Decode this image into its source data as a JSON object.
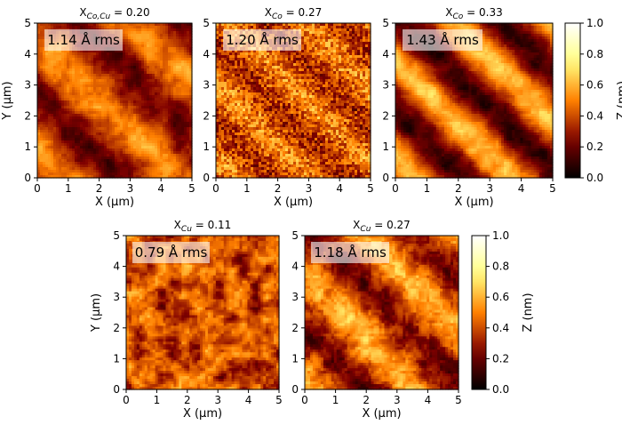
{
  "chart_data": [
    {
      "type": "heatmap",
      "title": {
        "main": "X",
        "sub": "Co,Cu",
        "val": " = 0.20"
      },
      "annotation": "1.14 Å rms",
      "rms_angstrom": 1.14,
      "xlabel": "X (μm)",
      "ylabel": "Y (μm)",
      "xlim": [
        0,
        5
      ],
      "ylim": [
        0,
        5
      ],
      "xticks": [
        "0",
        "1",
        "2",
        "3",
        "4",
        "5"
      ],
      "yticks": [
        "0",
        "1",
        "2",
        "3",
        "4",
        "5"
      ],
      "pattern": "diagonal stripes"
    },
    {
      "type": "heatmap",
      "title": {
        "main": "X",
        "sub": "Co",
        "val": " = 0.27"
      },
      "annotation": "1.20 Å rms",
      "rms_angstrom": 1.2,
      "xlabel": "X (μm)",
      "ylabel": "",
      "xlim": [
        0,
        5
      ],
      "ylim": [
        0,
        5
      ],
      "xticks": [
        "0",
        "1",
        "2",
        "3",
        "4",
        "5"
      ],
      "yticks": [
        "0",
        "1",
        "2",
        "3",
        "4",
        "5"
      ],
      "pattern": "fine grain, horizontal streaks"
    },
    {
      "type": "heatmap",
      "title": {
        "main": "X",
        "sub": "Co",
        "val": " = 0.33"
      },
      "annotation": "1.43 Å rms",
      "rms_angstrom": 1.43,
      "xlabel": "X (μm)",
      "ylabel": "",
      "xlim": [
        0,
        5
      ],
      "ylim": [
        0,
        5
      ],
      "xticks": [
        "0",
        "1",
        "2",
        "3",
        "4",
        "5"
      ],
      "yticks": [
        "0",
        "1",
        "2",
        "3",
        "4",
        "5"
      ],
      "pattern": "strong diagonal stripes"
    },
    {
      "type": "heatmap",
      "title": {
        "main": "X",
        "sub": "Cu",
        "val": " = 0.11"
      },
      "annotation": "0.79 Å rms",
      "rms_angstrom": 0.79,
      "xlabel": "X (μm)",
      "ylabel": "Y (μm)",
      "xlim": [
        0,
        5
      ],
      "ylim": [
        0,
        5
      ],
      "xticks": [
        "0",
        "1",
        "2",
        "3",
        "4",
        "5"
      ],
      "yticks": [
        "0",
        "1",
        "2",
        "3",
        "4",
        "5"
      ],
      "pattern": "blotchy grains"
    },
    {
      "type": "heatmap",
      "title": {
        "main": "X",
        "sub": "Cu",
        "val": " = 0.27"
      },
      "annotation": "1.18 Å rms",
      "rms_angstrom": 1.18,
      "xlabel": "X (μm)",
      "ylabel": "",
      "xlim": [
        0,
        5
      ],
      "ylim": [
        0,
        5
      ],
      "xticks": [
        "0",
        "1",
        "2",
        "3",
        "4",
        "5"
      ],
      "yticks": [
        "0",
        "1",
        "2",
        "3",
        "4",
        "5"
      ],
      "pattern": "diagonal stripes"
    }
  ],
  "colorbars": [
    {
      "label": "Z (nm)",
      "range": [
        0,
        1
      ],
      "ticks": [
        "0.0",
        "0.2",
        "0.4",
        "0.6",
        "0.8",
        "1.0"
      ],
      "colormap": "afmhot"
    },
    {
      "label": "Z (nm)",
      "range": [
        0,
        1
      ],
      "ticks": [
        "0.0",
        "0.2",
        "0.4",
        "0.6",
        "0.8",
        "1.0"
      ],
      "colormap": "afmhot"
    }
  ]
}
